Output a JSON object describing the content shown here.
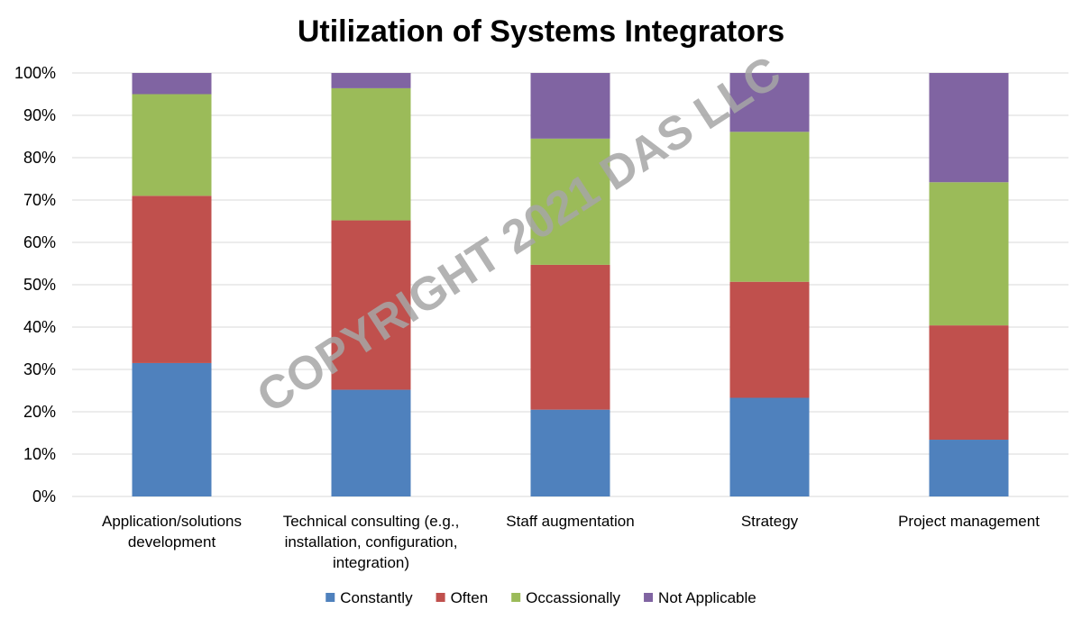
{
  "chart_data": {
    "type": "bar",
    "stacked": true,
    "title": "Utilization of Systems Integrators",
    "watermark": "COPYRIGHT 2021 DAS LLC",
    "categories": [
      [
        "Application/solutions",
        "development"
      ],
      [
        "Technical consulting (e.g.,",
        "installation, configuration,",
        "integration)"
      ],
      [
        "Staff augmentation"
      ],
      [
        "Strategy"
      ],
      [
        "Project management"
      ]
    ],
    "series": [
      {
        "name": "Constantly",
        "color": "#4F81BD",
        "values": [
          31.5,
          25.2,
          20.5,
          23.3,
          13.4
        ]
      },
      {
        "name": "Often",
        "color": "#C0504D",
        "values": [
          39.5,
          40.0,
          34.2,
          27.4,
          27.0
        ]
      },
      {
        "name": "Occassionally",
        "color": "#9BBB59",
        "values": [
          24.0,
          31.2,
          29.8,
          35.4,
          33.8
        ]
      },
      {
        "name": "Not Applicable",
        "color": "#8064A2",
        "values": [
          5.0,
          3.6,
          15.5,
          13.9,
          25.8
        ]
      }
    ],
    "ylim": [
      0,
      100
    ],
    "yticks": [
      "0%",
      "10%",
      "20%",
      "30%",
      "40%",
      "50%",
      "60%",
      "70%",
      "80%",
      "90%",
      "100%"
    ],
    "grid": true,
    "legend": "bottom",
    "gridline_color": "#D9D9D9"
  }
}
